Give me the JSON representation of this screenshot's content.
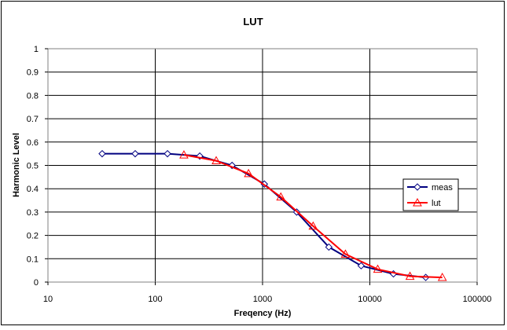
{
  "chart_data": {
    "type": "line",
    "title": "LUT",
    "xlabel": "Freqency (Hz)",
    "ylabel": "Harmonic Level",
    "x_scale": "log",
    "xlim": [
      10,
      100000
    ],
    "ylim": [
      0,
      1
    ],
    "x_ticks": [
      10,
      100,
      1000,
      10000,
      100000
    ],
    "x_tick_labels": [
      "10",
      "100",
      "1000",
      "10000",
      "100000"
    ],
    "y_ticks": [
      0,
      0.1,
      0.2,
      0.3,
      0.4,
      0.5,
      0.6,
      0.7,
      0.8,
      0.9,
      1
    ],
    "y_tick_labels": [
      "0",
      "0.1",
      "0.2",
      "0.3",
      "0.4",
      "0.5",
      "0.6",
      "0.7",
      "0.8",
      "0.9",
      "1"
    ],
    "grid": "horizontal and vertical major gridlines",
    "legend_position": "right",
    "series": [
      {
        "name": "meas",
        "color": "#000080",
        "marker": "diamond",
        "x": [
          32,
          65,
          130,
          260,
          520,
          1040,
          2080,
          4150,
          8300,
          16600,
          33200
        ],
        "y": [
          0.55,
          0.55,
          0.55,
          0.54,
          0.5,
          0.42,
          0.3,
          0.15,
          0.07,
          0.035,
          0.02
        ]
      },
      {
        "name": "lut",
        "color": "#ff0000",
        "marker": "triangle",
        "x": [
          185,
          370,
          740,
          1480,
          2960,
          5920,
          11840,
          23680,
          47360
        ],
        "y": [
          0.545,
          0.52,
          0.465,
          0.365,
          0.24,
          0.12,
          0.055,
          0.025,
          0.02
        ]
      }
    ]
  }
}
